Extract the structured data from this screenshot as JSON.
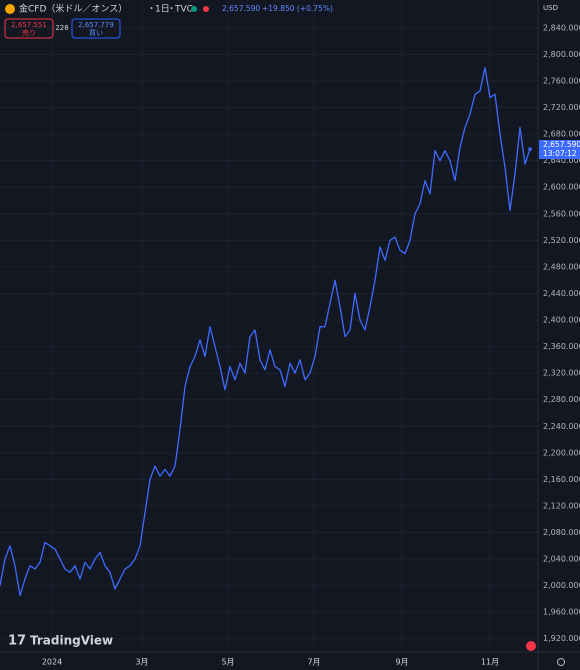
{
  "chart_data": {
    "type": "line",
    "title": "金CFD（米ドル／オンス）",
    "interval": "1日",
    "source": "TVC",
    "price": "2,657.590",
    "change": "+19.850 (+0.75%)",
    "sell_price": "2,657.551",
    "sell_label": "売り",
    "spread": "228",
    "buy_price": "2,657.779",
    "buy_label": "買い",
    "currency": "USD",
    "countdown": "13:07:12",
    "brand": "TradingView",
    "grid": true,
    "series": [
      {
        "color": "#3d6bff",
        "values": [
          2000,
          2040,
          2060,
          2030,
          1985,
          2010,
          2030,
          2025,
          2035,
          2065,
          2060,
          2055,
          2040,
          2025,
          2020,
          2030,
          2010,
          2035,
          2025,
          2040,
          2050,
          2030,
          2020,
          1995,
          2010,
          2025,
          2030,
          2040,
          2060,
          2110,
          2160,
          2180,
          2165,
          2175,
          2165,
          2180,
          2235,
          2300,
          2330,
          2345,
          2370,
          2345,
          2390,
          2360,
          2330,
          2295,
          2330,
          2310,
          2335,
          2320,
          2375,
          2385,
          2340,
          2325,
          2355,
          2330,
          2325,
          2300,
          2335,
          2320,
          2340,
          2310,
          2320,
          2345,
          2390,
          2390,
          2425,
          2460,
          2420,
          2375,
          2385,
          2440,
          2400,
          2385,
          2420,
          2460,
          2510,
          2490,
          2520,
          2525,
          2505,
          2500,
          2520,
          2560,
          2575,
          2610,
          2590,
          2655,
          2640,
          2655,
          2640,
          2610,
          2660,
          2690,
          2710,
          2740,
          2745,
          2780,
          2735,
          2740,
          2680,
          2630,
          2565,
          2620,
          2690,
          2635,
          2657.59
        ]
      }
    ],
    "xlim": [
      0,
      107.6
    ],
    "xticks": [
      {
        "value": 10.4,
        "label": "2024"
      },
      {
        "value": 28.4,
        "label": "3月"
      },
      {
        "value": 45.6,
        "label": "5月"
      },
      {
        "value": 62.8,
        "label": "7月"
      },
      {
        "value": 80.4,
        "label": "9月"
      },
      {
        "value": 98,
        "label": "11月"
      }
    ],
    "ylim": [
      1900,
      2882
    ],
    "yticks": [
      {
        "value": 1920,
        "label": "1,920.000"
      },
      {
        "value": 1960,
        "label": "1,960.000"
      },
      {
        "value": 2000,
        "label": "2,000.000"
      },
      {
        "value": 2040,
        "label": "2,040.000"
      },
      {
        "value": 2080,
        "label": "2,080.000"
      },
      {
        "value": 2120,
        "label": "2,120.000"
      },
      {
        "value": 2160,
        "label": "2,160.000"
      },
      {
        "value": 2200,
        "label": "2,200.000"
      },
      {
        "value": 2240,
        "label": "2,240.000"
      },
      {
        "value": 2280,
        "label": "2,280.000"
      },
      {
        "value": 2320,
        "label": "2,320.000"
      },
      {
        "value": 2360,
        "label": "2,360.000"
      },
      {
        "value": 2400,
        "label": "2,400.000"
      },
      {
        "value": 2440,
        "label": "2,440.000"
      },
      {
        "value": 2480,
        "label": "2,480.000"
      },
      {
        "value": 2520,
        "label": "2,520.000"
      },
      {
        "value": 2560,
        "label": "2,560.000"
      },
      {
        "value": 2600,
        "label": "2,600.000"
      },
      {
        "value": 2640,
        "label": "2,640.000"
      },
      {
        "value": 2680,
        "label": "2,680.000"
      },
      {
        "value": 2720,
        "label": "2,720.000"
      },
      {
        "value": 2760,
        "label": "2,760.000"
      },
      {
        "value": 2800,
        "label": "2,800.000"
      },
      {
        "value": 2840,
        "label": "2,840.000"
      }
    ]
  }
}
